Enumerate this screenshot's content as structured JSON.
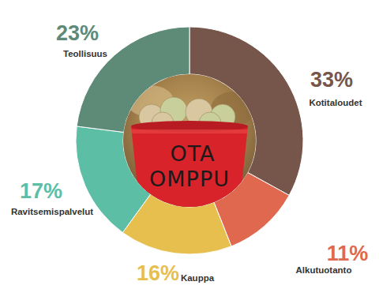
{
  "chart_data": {
    "type": "donut",
    "categories": [
      "Kotitaloudet",
      "Alkutuotanto",
      "Kauppa",
      "Ravitsemispalvelut",
      "Teollisuus"
    ],
    "values": [
      33,
      11,
      16,
      17,
      23
    ],
    "value_labels": [
      "33%",
      "11%",
      "16%",
      "17%",
      "23%"
    ],
    "colors": [
      "#76564b",
      "#e0684e",
      "#e6bf4e",
      "#5cbfa5",
      "#5e8a78"
    ],
    "data_labels": true,
    "annotations": [
      "OTA",
      "OMPPU"
    ]
  }
}
